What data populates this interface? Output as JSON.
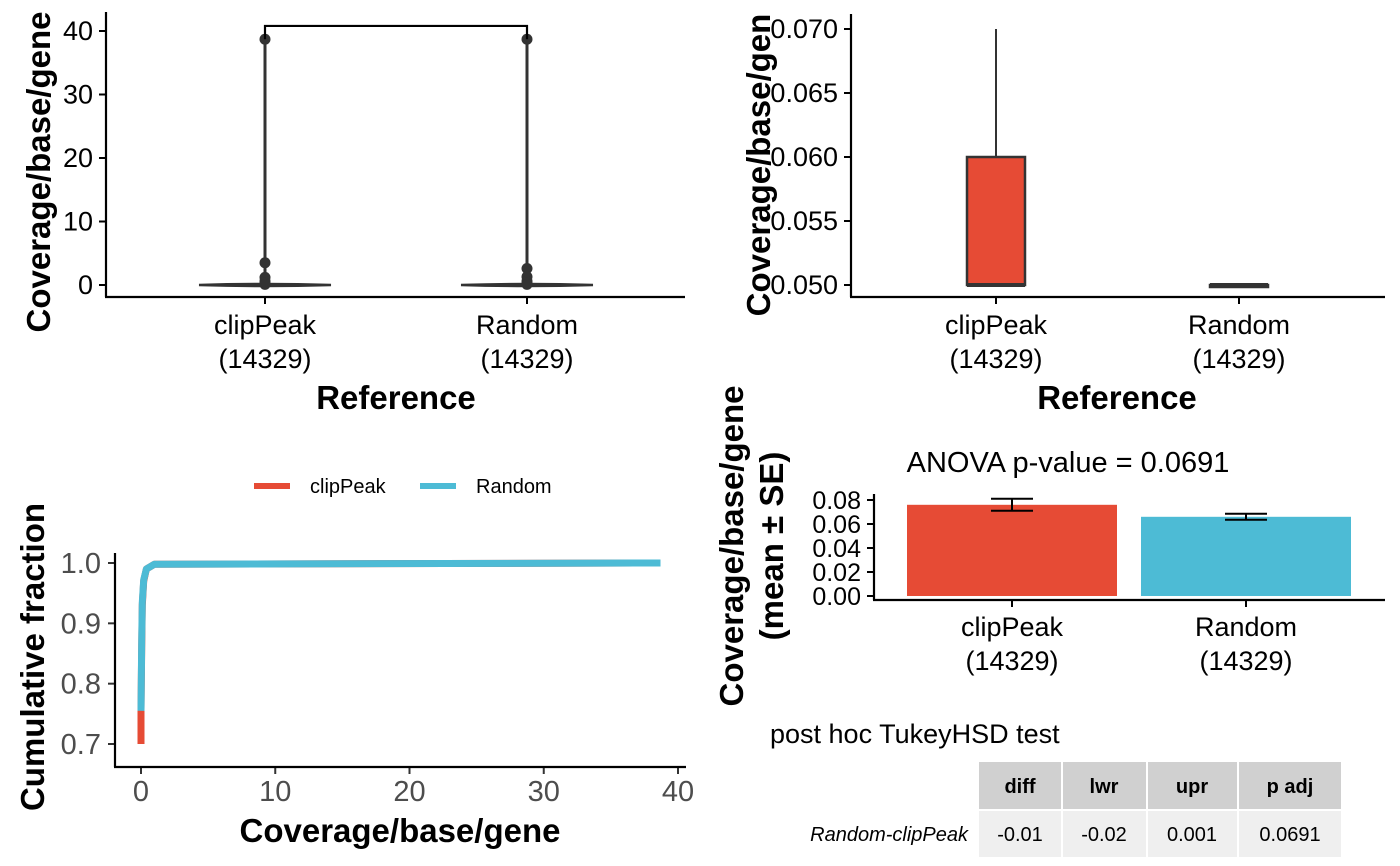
{
  "colors": {
    "clipPeak": "#E64B35",
    "Random": "#4DBBD5",
    "axis": "#000000",
    "box": "#333333",
    "table_header_bg": "#D0D0D0",
    "table_row_bg": "#EFEFEF",
    "tick_gray": "#4D4D4D"
  },
  "chart_data": [
    {
      "id": "violin",
      "type": "violin",
      "ylabel": "Coverage/base/gene",
      "xlabel": "Reference",
      "categories": [
        {
          "name": "clipPeak",
          "count": "(14329)"
        },
        {
          "name": "Random",
          "count": "(14329)"
        }
      ],
      "yticks": [
        "0",
        "10",
        "20",
        "30",
        "40"
      ],
      "ylim": [
        0,
        42
      ],
      "series": [
        {
          "name": "clipPeak",
          "max": 38.7,
          "outliers": [
            38.7,
            3.5,
            1.2,
            0.6,
            0.3,
            0.1
          ]
        },
        {
          "name": "Random",
          "max": 38.7,
          "outliers": [
            38.7,
            2.6,
            1.3,
            0.6,
            0.3,
            0.1
          ]
        }
      ],
      "bracket_y": 40.8
    },
    {
      "id": "boxplot",
      "type": "box",
      "ylabel": "Coverage/base/gen",
      "xlabel": "Reference",
      "categories": [
        {
          "name": "clipPeak",
          "count": "(14329)"
        },
        {
          "name": "Random",
          "count": "(14329)"
        }
      ],
      "yticks": [
        "0.050",
        "0.055",
        "0.060",
        "0.065",
        "0.070"
      ],
      "ylim": [
        0.0488,
        0.0712
      ],
      "series": [
        {
          "name": "clipPeak",
          "q1": 0.05,
          "median": 0.05,
          "q3": 0.06,
          "whisker_high": 0.07,
          "whisker_low": 0.05
        },
        {
          "name": "Random",
          "q1": 0.05,
          "median": 0.05,
          "q3": 0.05,
          "whisker_high": 0.05,
          "whisker_low": 0.05
        }
      ]
    },
    {
      "id": "ecdf",
      "type": "line",
      "ylabel": "Cumulative fraction",
      "xlabel": "Coverage/base/gene",
      "legend": [
        "clipPeak",
        "Random"
      ],
      "xticks": [
        "0",
        "10",
        "20",
        "30",
        "40"
      ],
      "yticks": [
        "0.7",
        "0.8",
        "0.9",
        "1.0"
      ],
      "xlim": [
        -1.8,
        40
      ],
      "ylim": [
        0.69,
        1.02
      ],
      "series": [
        {
          "name": "clipPeak",
          "x": [
            0,
            0,
            0.05,
            0.1,
            0.2,
            0.4,
            1.0,
            38.7
          ],
          "y": [
            0.7,
            0.755,
            0.86,
            0.93,
            0.97,
            0.99,
            0.998,
            1.0
          ]
        },
        {
          "name": "Random",
          "x": [
            0,
            0.05,
            0.1,
            0.2,
            0.4,
            1.0,
            38.7
          ],
          "y": [
            0.755,
            0.87,
            0.935,
            0.972,
            0.99,
            0.998,
            1.0
          ]
        }
      ]
    },
    {
      "id": "barplot",
      "type": "bar",
      "title": "ANOVA p-value = 0.0691",
      "ylabel_line1": "Coverage/base/gene",
      "ylabel_line2": "(mean ± SE)",
      "categories": [
        {
          "name": "clipPeak",
          "count": "(14329)"
        },
        {
          "name": "Random",
          "count": "(14329)"
        }
      ],
      "yticks": [
        "0.00",
        "0.02",
        "0.04",
        "0.06",
        "0.08"
      ],
      "ylim": [
        0,
        0.083
      ],
      "series": [
        {
          "name": "clipPeak",
          "value": 0.076,
          "se": 0.005
        },
        {
          "name": "Random",
          "value": 0.066,
          "se": 0.0025
        }
      ]
    }
  ],
  "tukey": {
    "title": "post hoc TukeyHSD test",
    "columns": [
      "diff",
      "lwr",
      "upr",
      "p adj"
    ],
    "rows": [
      {
        "label": "Random-clipPeak",
        "values": [
          "-0.01",
          "-0.02",
          "0.001",
          "0.0691"
        ]
      }
    ]
  }
}
